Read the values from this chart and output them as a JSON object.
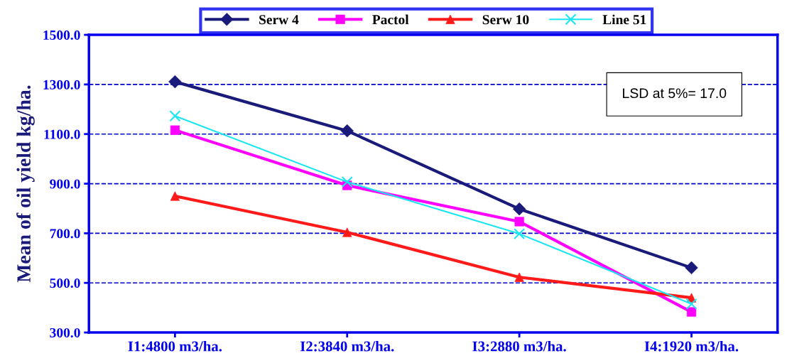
{
  "chart_data": {
    "type": "line",
    "ylabel": "Mean of oil yield kg/ha.",
    "categories": [
      "I1:4800 m3/ha.",
      "I2:3840 m3/ha.",
      "I3:2880 m3/ha.",
      "I4:1920 m3/ha."
    ],
    "series": [
      {
        "name": "Serw 4",
        "color": "#1a1a7a",
        "marker": "diamond",
        "values": [
          1311,
          1113,
          798,
          561
        ]
      },
      {
        "name": "Pactol",
        "color": "#ff00ff",
        "marker": "square",
        "values": [
          1116,
          893,
          747,
          383
        ]
      },
      {
        "name": "Serw 10",
        "color": "#ff1a1a",
        "marker": "triangle",
        "values": [
          850,
          704,
          523,
          440
        ]
      },
      {
        "name": "Line 51",
        "color": "#19e6f0",
        "marker": "cross",
        "values": [
          1173,
          907,
          698,
          415
        ]
      }
    ],
    "ylim": [
      300,
      1500
    ],
    "yticks": [
      {
        "value": 300,
        "label": "300.0"
      },
      {
        "value": 500,
        "label": "500.0"
      },
      {
        "value": 700,
        "label": "700.0"
      },
      {
        "value": 900,
        "label": "900.0"
      },
      {
        "value": 1100,
        "label": "1100.0"
      },
      {
        "value": 1300,
        "label": "1300.0"
      },
      {
        "value": 1500,
        "label": "1500.0"
      }
    ],
    "grid": "y",
    "legend": "top",
    "annotations": [
      "LSD at 5%= 17.0"
    ]
  }
}
